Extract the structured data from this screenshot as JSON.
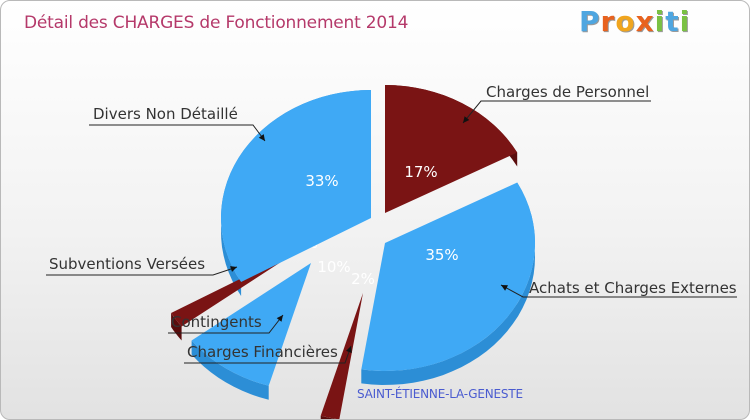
{
  "title": "Détail des CHARGES de Fonctionnement 2014",
  "logo": {
    "text": "Proxiti",
    "letters": [
      "P",
      "r",
      "o",
      "x",
      "i",
      "t",
      "i"
    ],
    "colors": [
      "#4fa6e0",
      "#e8621e",
      "#f0a51e",
      "#e8621e",
      "#7ac143",
      "#4fa6e0",
      "#7ac143"
    ]
  },
  "location": "SAINT-ÉTIENNE-LA-GENESTE",
  "colors": {
    "blue": "#3fa9f5",
    "blue_side": "#2c8ed6",
    "red": "#7a1414",
    "red_side": "#5a0c0c",
    "label_text": "#333333",
    "title": "#b5396a"
  },
  "chart_data": {
    "type": "pie",
    "style": "3d-exploded",
    "slices": [
      {
        "label": "Charges de Personnel",
        "value": 17,
        "pct_label": "17%",
        "color": "red"
      },
      {
        "label": "Achats et Charges Externes",
        "value": 35,
        "pct_label": "35%",
        "color": "blue"
      },
      {
        "label": "Charges Financières",
        "value": 2,
        "pct_label": "2%",
        "color": "red"
      },
      {
        "label": "Contingents",
        "value": 10,
        "pct_label": "10%",
        "color": "blue"
      },
      {
        "label": "Subventions Versées",
        "value": 2,
        "pct_label": "2%",
        "color": "red"
      },
      {
        "label": "Divers Non Détaillé",
        "value": 33,
        "pct_label": "33%",
        "color": "blue"
      }
    ]
  }
}
